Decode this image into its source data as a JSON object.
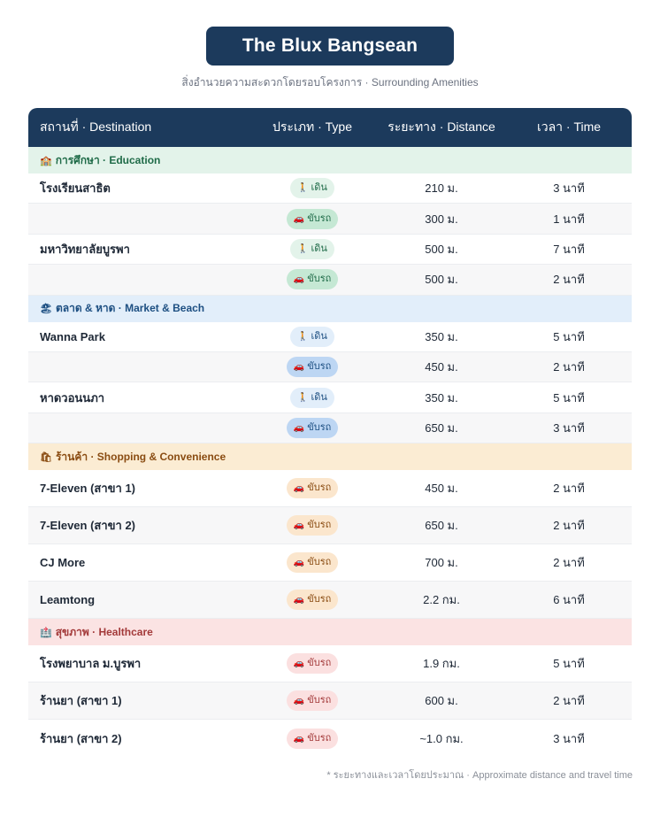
{
  "title": "The Blux Bangsean",
  "subtitle": "สิ่งอำนวยความสะดวกโดยรอบโครงการ · Surrounding Amenities",
  "headers": {
    "destination": "สถานที่ · Destination",
    "type": "ประเภท · Type",
    "distance": "ระยะทาง · Distance",
    "time": "เวลา · Time"
  },
  "types": {
    "walk": "เดิน",
    "drive": "ขับรถ"
  },
  "icons": {
    "walk": "person-walking-icon",
    "drive": "car-icon"
  },
  "categories": [
    {
      "label": "การศึกษา · Education",
      "icon": "school-icon",
      "color": "#1f6b48",
      "rows": [
        {
          "name": "โรงเรียนสาธิต",
          "type": "เดิน",
          "distance": "210 ม.",
          "time": "3 นาที"
        },
        {
          "name": "",
          "type": "ขับรถ",
          "distance": "300 ม.",
          "time": "1 นาที"
        },
        {
          "name": "มหาวิทยาลัยบูรพา",
          "type": "เดิน",
          "distance": "500 ม.",
          "time": "7 นาที"
        },
        {
          "name": "",
          "type": "ขับรถ",
          "distance": "500 ม.",
          "time": "2 นาที"
        }
      ]
    },
    {
      "label": "ตลาด & หาด · Market & Beach",
      "icon": "beach-umbrella-icon",
      "color": "#1d4f82",
      "rows": [
        {
          "name": "Wanna Park",
          "type": "เดิน",
          "distance": "350 ม.",
          "time": "5 นาที"
        },
        {
          "name": "",
          "type": "ขับรถ",
          "distance": "450 ม.",
          "time": "2 นาที"
        },
        {
          "name": "หาดวอนนภา",
          "type": "เดิน",
          "distance": "350 ม.",
          "time": "5 นาที"
        },
        {
          "name": "",
          "type": "ขับรถ",
          "distance": "650 ม.",
          "time": "3 นาที"
        }
      ]
    },
    {
      "label": "ร้านค้า · Shopping & Convenience",
      "icon": "shopping-bags-icon",
      "color": "#8a4c12",
      "rows": [
        {
          "name": "7-Eleven (สาขา 1)",
          "type": "ขับรถ",
          "distance": "450 ม.",
          "time": "2 นาที"
        },
        {
          "name": "7-Eleven (สาขา 2)",
          "type": "ขับรถ",
          "distance": "650 ม.",
          "time": "2 นาที"
        },
        {
          "name": "CJ More",
          "type": "ขับรถ",
          "distance": "700 ม.",
          "time": "2 นาที"
        },
        {
          "name": "Leamtong",
          "type": "ขับรถ",
          "distance": "2.2 กม.",
          "time": "6 นาที"
        }
      ]
    },
    {
      "label": "สุขภาพ · Healthcare",
      "icon": "hospital-icon",
      "color": "#a33a3a",
      "rows": [
        {
          "name": "โรงพยาบาล ม.บูรพา",
          "type": "ขับรถ",
          "distance": "1.9 กม.",
          "time": "5 นาที"
        },
        {
          "name": "ร้านยา (สาขา 1)",
          "type": "ขับรถ",
          "distance": "600 ม.",
          "time": "2 นาที"
        },
        {
          "name": "ร้านยา (สาขา 2)",
          "type": "ขับรถ",
          "distance": "~1.0 กม.",
          "time": "3 นาที"
        }
      ]
    }
  ],
  "footnote": "* ระยะทางและเวลาโดยประมาณ · Approximate distance and travel time"
}
